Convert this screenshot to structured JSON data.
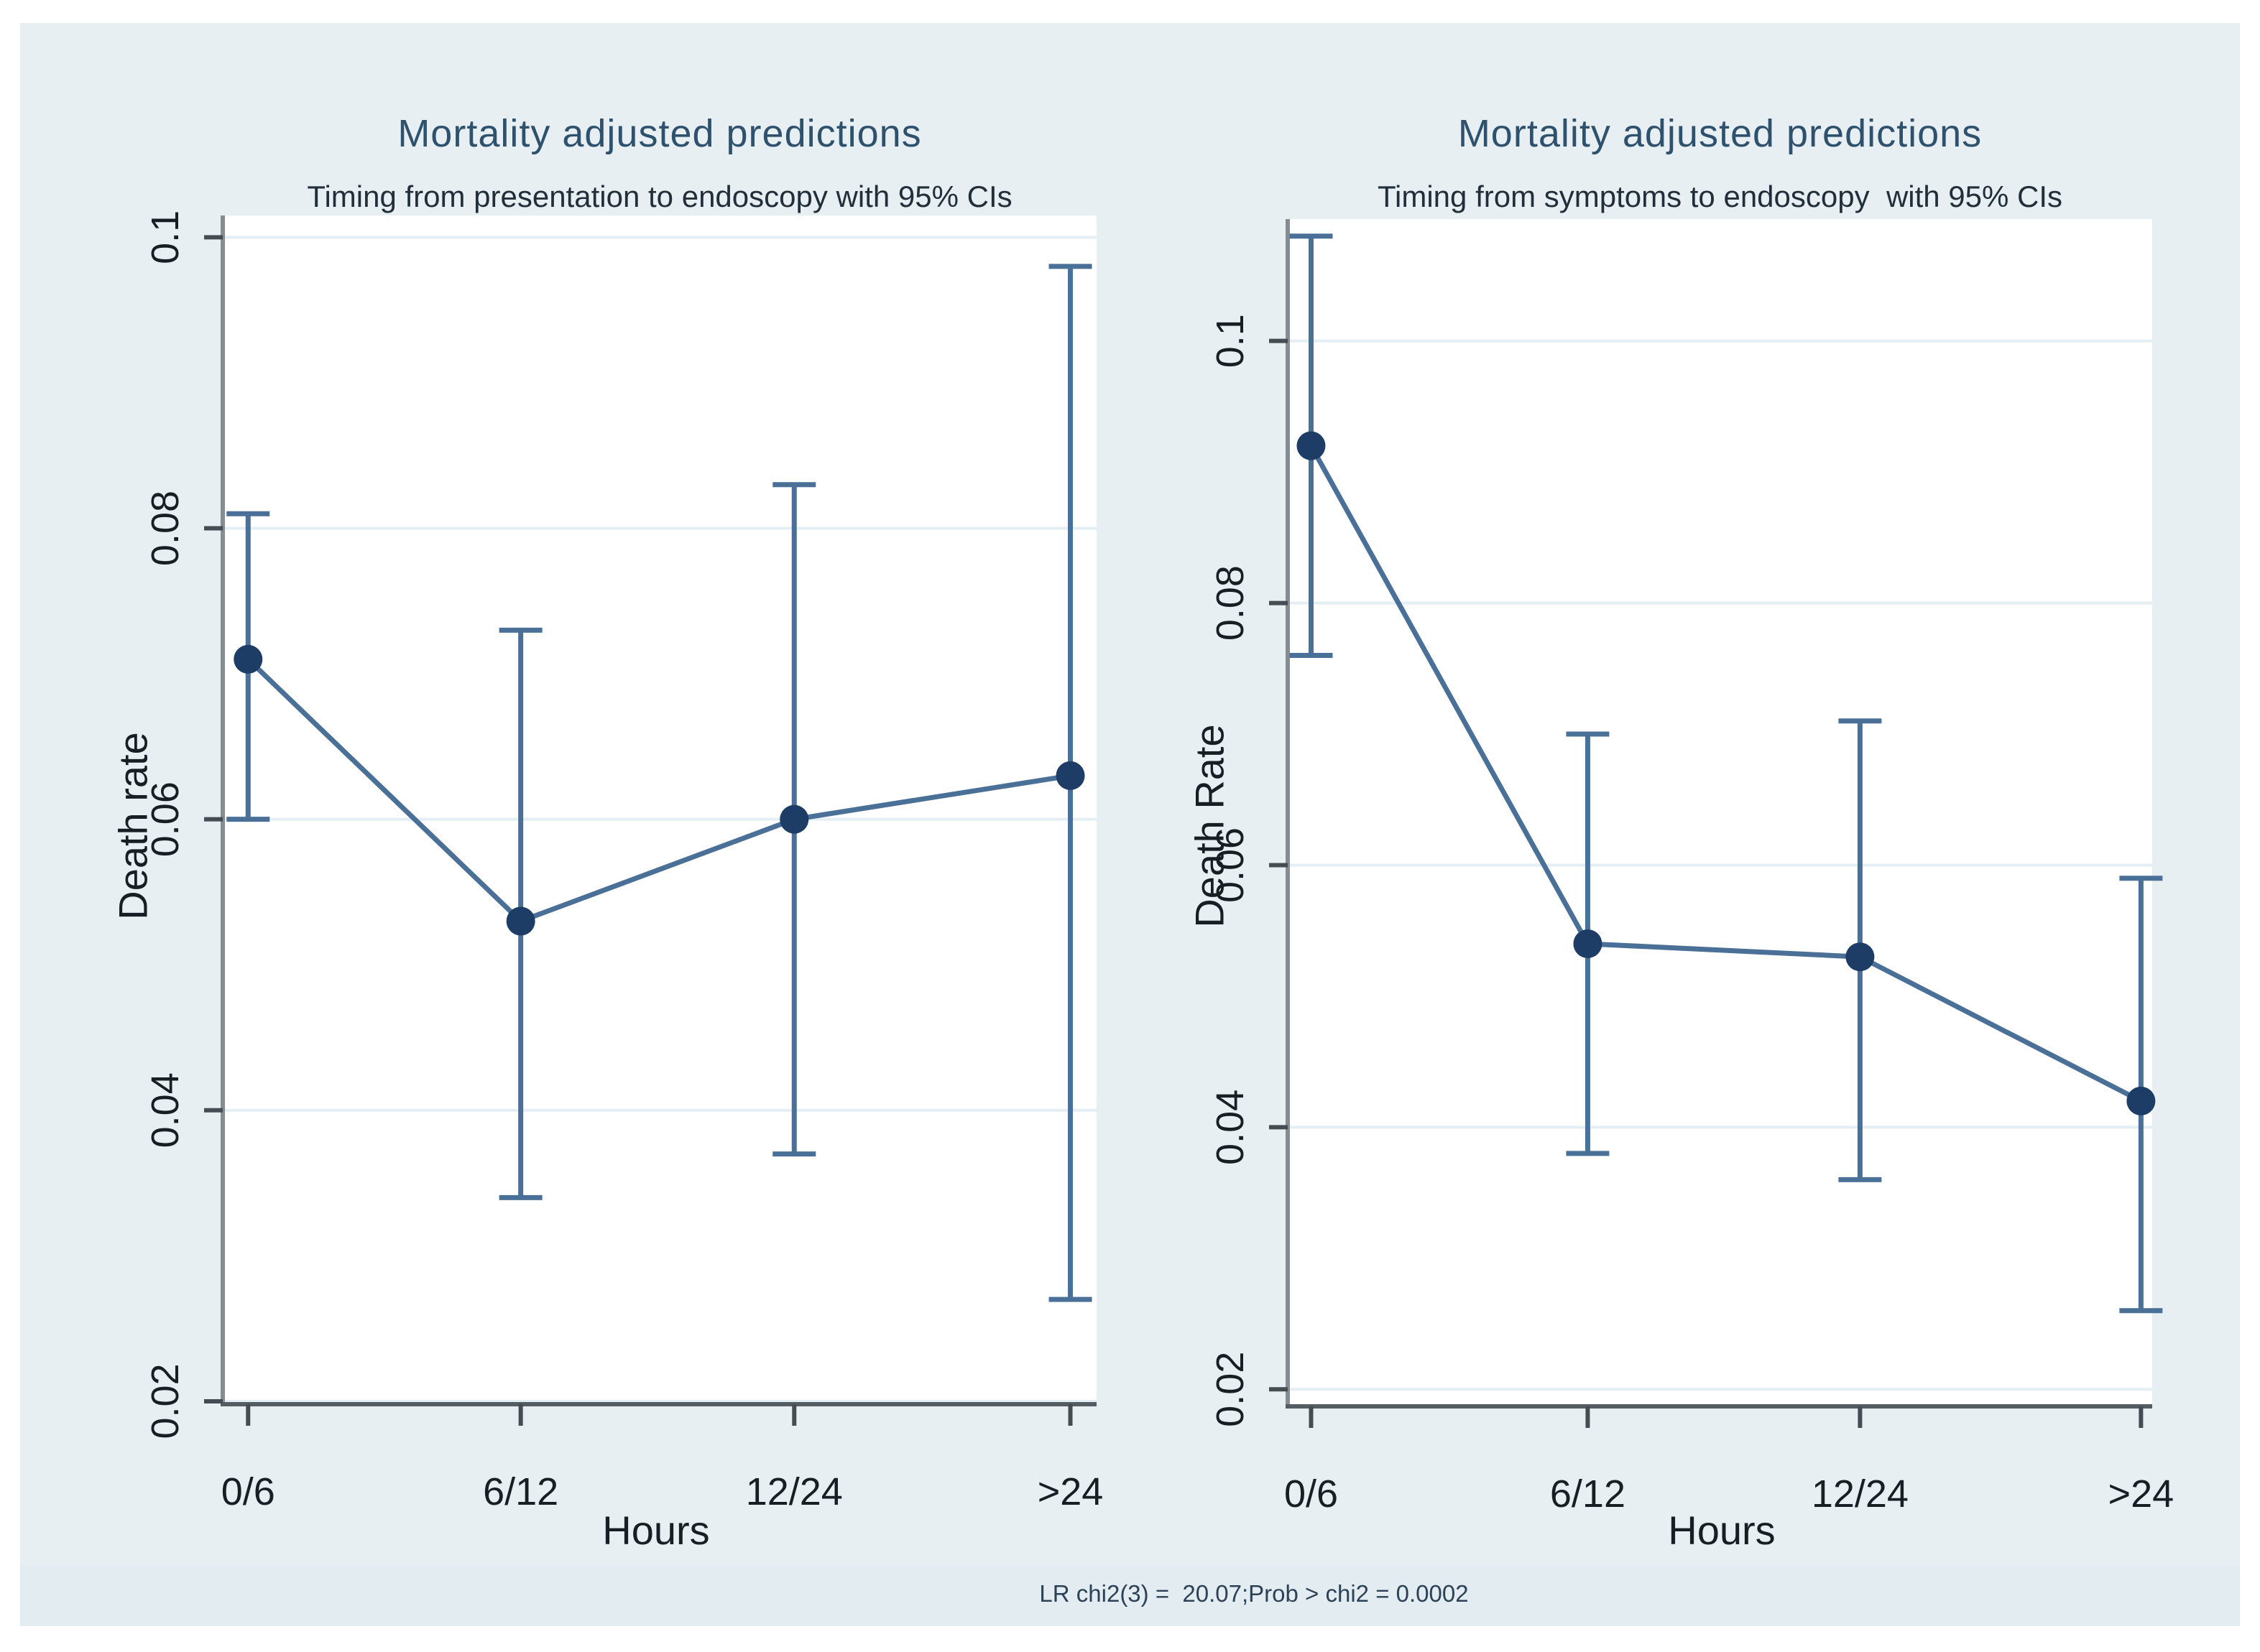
{
  "page": {
    "background": "#ffffff",
    "canvas_color": "#e8eff3",
    "footer_band_color": "#e2ecf1"
  },
  "footer": {
    "stats_text": "LR chi2(3) =  20.07;Prob > chi2 = 0.0002"
  },
  "style": {
    "plot_bg": "#ffffff",
    "grid_color": "#e3eef5",
    "y_axis_color": "#868d92",
    "x_axis_color": "#555d63",
    "tick_color": "#464d52",
    "tick_label_color": "#171e24",
    "title_color": "#2e516e",
    "subtitle_color": "#222f3a",
    "axis_title_color": "#171e24",
    "stats_color": "#2d4257",
    "line_color": "#4a7097",
    "marker_color": "#1e3d66"
  },
  "chart_data": [
    {
      "type": "line",
      "title": "Mortality adjusted predictions",
      "subtitle": "Timing from presentation to endoscopy with 95% CIs",
      "xlabel": "Hours",
      "ylabel": "Death rate",
      "categories": [
        "0/6",
        "6/12",
        "12/24",
        ">24"
      ],
      "values": [
        0.071,
        0.053,
        0.06,
        0.063
      ],
      "ci_low": [
        0.06,
        0.034,
        0.037,
        0.027
      ],
      "ci_high": [
        0.081,
        0.073,
        0.083,
        0.098
      ],
      "yticks": [
        0.02,
        0.04,
        0.06,
        0.08,
        0.1
      ],
      "ytick_labels": [
        "0.02",
        "0.04",
        "0.06",
        "0.08",
        "0.1"
      ],
      "ylim": [
        0.0198,
        0.1015
      ],
      "grid": true,
      "legend": "none"
    },
    {
      "type": "line",
      "title": "Mortality adjusted predictions",
      "subtitle": "Timing from symptoms to endoscopy  with 95% CIs",
      "xlabel": "Hours",
      "ylabel": "Death Rate",
      "categories": [
        "0/6",
        "6/12",
        "12/24",
        ">24"
      ],
      "values": [
        0.092,
        0.054,
        0.053,
        0.042
      ],
      "ci_low": [
        0.076,
        0.038,
        0.036,
        0.026
      ],
      "ci_high": [
        0.108,
        0.07,
        0.071,
        0.059
      ],
      "yticks": [
        0.02,
        0.04,
        0.06,
        0.08,
        0.1
      ],
      "ytick_labels": [
        "0.02",
        "0.04",
        "0.06",
        "0.08",
        "0.1"
      ],
      "ylim": [
        0.0187,
        0.1093
      ],
      "grid": true,
      "legend": "none"
    }
  ]
}
